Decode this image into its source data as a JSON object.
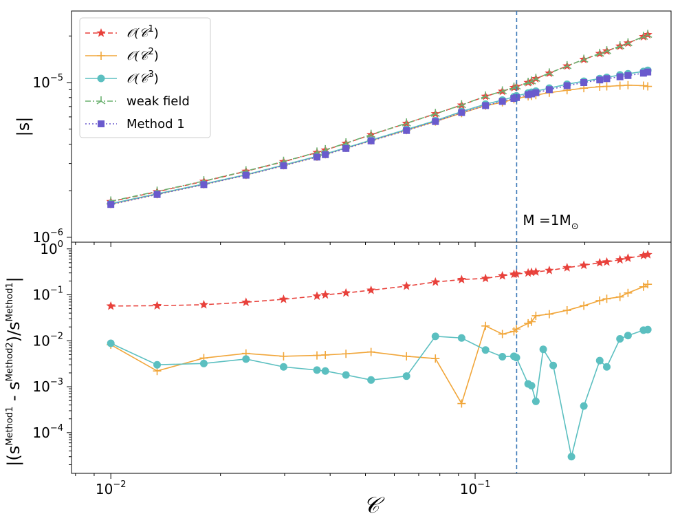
{
  "chart_data": [
    {
      "type": "line",
      "panel": "top",
      "xscale": "log",
      "yscale": "log",
      "xlim": [
        0.0078,
        0.345
      ],
      "ylim": [
        9.3e-07,
        2.9e-05
      ],
      "ylabel": "|s|",
      "yticks": [
        {
          "value": 1e-06,
          "base": "10",
          "exp": "−6"
        },
        {
          "value": 1e-05,
          "base": "10",
          "exp": "−5"
        }
      ],
      "annotation": {
        "x": 0.13,
        "base": "M =1M",
        "subscript": "⊙"
      },
      "x": [
        0.01,
        0.0134,
        0.018,
        0.0235,
        0.0298,
        0.0368,
        0.0388,
        0.0442,
        0.0518,
        0.0648,
        0.0778,
        0.0918,
        0.1068,
        0.1188,
        0.1278,
        0.1298,
        0.1398,
        0.1428,
        0.1468,
        0.1598,
        0.1788,
        0.1988,
        0.2198,
        0.2298,
        0.2498,
        0.2628,
        0.2898,
        0.2978
      ],
      "series": [
        {
          "name": "𝒪(𝒞¹)",
          "label_base": "𝒪(𝒞",
          "label_exp": "1",
          "color": "#e8413b",
          "marker": "star",
          "line": "dashed",
          "values": [
            1.7e-06,
            1.97e-06,
            2.3e-06,
            2.67e-06,
            3.08e-06,
            3.53e-06,
            3.66e-06,
            4.05e-06,
            4.6e-06,
            5.45e-06,
            6.28e-06,
            7.15e-06,
            8.15e-06,
            8.78e-06,
            9.28e-06,
            9.42e-06,
            1e-05,
            1.02e-05,
            1.06e-05,
            1.15e-05,
            1.28e-05,
            1.41e-05,
            1.54e-05,
            1.6e-05,
            1.72e-05,
            1.8e-05,
            1.98e-05,
            2.04e-05
          ]
        },
        {
          "name": "𝒪(𝒞²)",
          "label_base": "𝒪(𝒞",
          "label_exp": "2",
          "color": "#f1a63a",
          "marker": "plus",
          "line": "solid",
          "values": [
            1.64e-06,
            1.9e-06,
            2.2e-06,
            2.53e-06,
            2.92e-06,
            3.32e-06,
            3.44e-06,
            3.78e-06,
            4.22e-06,
            4.93e-06,
            5.6e-06,
            6.35e-06,
            7.1e-06,
            7.45e-06,
            7.8e-06,
            7.9e-06,
            8.15e-06,
            8.2e-06,
            8.3e-06,
            8.6e-06,
            8.92e-06,
            9.2e-06,
            9.4e-06,
            9.45e-06,
            9.55e-06,
            9.62e-06,
            9.55e-06,
            9.45e-06
          ]
        },
        {
          "name": "𝒪(𝒞³)",
          "label_base": "𝒪(𝒞",
          "label_exp": "3",
          "color": "#5bbfc0",
          "marker": "circle",
          "line": "solid",
          "values": [
            1.65e-06,
            1.91e-06,
            2.21e-06,
            2.54e-06,
            2.93e-06,
            3.34e-06,
            3.46e-06,
            3.79e-06,
            4.25e-06,
            4.98e-06,
            5.67e-06,
            6.5e-06,
            7.25e-06,
            7.7e-06,
            8.1e-06,
            8.2e-06,
            8.55e-06,
            8.65e-06,
            8.8e-06,
            9.2e-06,
            9.75e-06,
            1.02e-05,
            1.06e-05,
            1.08e-05,
            1.12e-05,
            1.14e-05,
            1.18e-05,
            1.2e-05
          ]
        },
        {
          "name": "weak field",
          "label_base": "weak field",
          "label_exp": "",
          "color": "#6ab06f",
          "marker": "tri",
          "line": "dashdot",
          "values": [
            1.71e-06,
            1.98e-06,
            2.31e-06,
            2.68e-06,
            3.09e-06,
            3.54e-06,
            3.67e-06,
            4.06e-06,
            4.61e-06,
            5.46e-06,
            6.29e-06,
            7.16e-06,
            8.16e-06,
            8.8e-06,
            9.3e-06,
            9.44e-06,
            1e-05,
            1.02e-05,
            1.06e-05,
            1.15e-05,
            1.28e-05,
            1.41e-05,
            1.54e-05,
            1.6e-05,
            1.72e-05,
            1.8e-05,
            1.98e-05,
            2.04e-05
          ]
        },
        {
          "name": "Method 1",
          "label_base": "Method 1",
          "label_exp": "",
          "color": "#6a5acd",
          "marker": "square",
          "line": "dotted",
          "values": [
            1.63e-06,
            1.89e-06,
            2.19e-06,
            2.52e-06,
            2.9e-06,
            3.3e-06,
            3.42e-06,
            3.75e-06,
            4.2e-06,
            4.9e-06,
            5.6e-06,
            6.4e-06,
            7.1e-06,
            7.55e-06,
            7.9e-06,
            8e-06,
            8.35e-06,
            8.45e-06,
            8.6e-06,
            9e-06,
            9.55e-06,
            1e-05,
            1.04e-05,
            1.06e-05,
            1.09e-05,
            1.11e-05,
            1.15e-05,
            1.17e-05
          ]
        }
      ]
    },
    {
      "type": "line",
      "panel": "bottom",
      "xscale": "log",
      "yscale": "log",
      "xlim": [
        0.0078,
        0.345
      ],
      "ylim": [
        1.3e-05,
        1.4
      ],
      "xlabel": "𝒞",
      "ylabel_parts": {
        "a": "|(s",
        "a_sup": "Method1",
        "b": " - s",
        "b_sup": "Method2",
        "c": ")/s",
        "c_sup": "Method1",
        "d": "|"
      },
      "xticks": [
        {
          "value": 0.01,
          "base": "10",
          "exp": "−2"
        },
        {
          "value": 0.1,
          "base": "10",
          "exp": "−1"
        }
      ],
      "yticks": [
        {
          "value": 0.0001,
          "base": "10",
          "exp": "−4"
        },
        {
          "value": 0.001,
          "base": "10",
          "exp": "−3"
        },
        {
          "value": 0.01,
          "base": "10",
          "exp": "−2"
        },
        {
          "value": 0.1,
          "base": "10",
          "exp": "−1"
        },
        {
          "value": 1,
          "base": "10",
          "exp": "0"
        }
      ],
      "series": [
        {
          "name": "𝒪(𝒞¹)",
          "color": "#e8413b",
          "marker": "star",
          "line": "dashed",
          "x": [
            0.01,
            0.0134,
            0.018,
            0.0235,
            0.0298,
            0.0368,
            0.0388,
            0.0442,
            0.0518,
            0.0648,
            0.0778,
            0.0918,
            0.1068,
            0.1188,
            0.1278,
            0.1298,
            0.1398,
            0.1428,
            0.1468,
            0.1598,
            0.1788,
            0.1988,
            0.2198,
            0.2298,
            0.2498,
            0.2628,
            0.2898,
            0.2978
          ],
          "values": [
            0.057,
            0.058,
            0.061,
            0.069,
            0.08,
            0.094,
            0.1,
            0.11,
            0.126,
            0.155,
            0.19,
            0.215,
            0.228,
            0.26,
            0.28,
            0.285,
            0.3,
            0.31,
            0.315,
            0.34,
            0.39,
            0.44,
            0.5,
            0.52,
            0.58,
            0.63,
            0.72,
            0.75
          ]
        },
        {
          "name": "𝒪(𝒞²)",
          "color": "#f1a63a",
          "marker": "plus",
          "line": "solid",
          "x": [
            0.01,
            0.0134,
            0.018,
            0.0235,
            0.0298,
            0.0368,
            0.0388,
            0.0442,
            0.0518,
            0.0648,
            0.0778,
            0.0918,
            0.1068,
            0.1188,
            0.1278,
            0.1298,
            0.1398,
            0.1428,
            0.1468,
            0.1598,
            0.1788,
            0.1988,
            0.2198,
            0.2298,
            0.2498,
            0.2628,
            0.2898,
            0.2978
          ],
          "values": [
            0.0082,
            0.0022,
            0.0042,
            0.0053,
            0.0046,
            0.0048,
            0.0049,
            0.0052,
            0.0057,
            0.0046,
            0.0041,
            0.00043,
            0.021,
            0.014,
            0.016,
            0.018,
            0.024,
            0.026,
            0.035,
            0.038,
            0.046,
            0.058,
            0.075,
            0.082,
            0.09,
            0.11,
            0.15,
            0.17
          ]
        },
        {
          "name": "𝒪(𝒞³)",
          "color": "#5bbfc0",
          "marker": "circle",
          "line": "solid",
          "x": [
            0.01,
            0.0134,
            0.018,
            0.0235,
            0.0298,
            0.0368,
            0.0388,
            0.0442,
            0.0518,
            0.0648,
            0.0778,
            0.0918,
            0.1068,
            0.1188,
            0.1278,
            0.1298,
            0.1398,
            0.1428,
            0.1468,
            0.1538,
            0.1638,
            0.1838,
            0.1988,
            0.2198,
            0.2298,
            0.2498,
            0.2628,
            0.2898,
            0.2978
          ],
          "values": [
            0.0088,
            0.003,
            0.0032,
            0.004,
            0.0027,
            0.0023,
            0.0022,
            0.0018,
            0.0014,
            0.0017,
            0.0125,
            0.0115,
            0.0063,
            0.0045,
            0.0046,
            0.0043,
            0.00115,
            0.00105,
            0.00048,
            0.0065,
            0.0029,
            3e-05,
            0.00038,
            0.0037,
            0.0027,
            0.011,
            0.013,
            0.017,
            0.0175
          ]
        }
      ]
    }
  ]
}
